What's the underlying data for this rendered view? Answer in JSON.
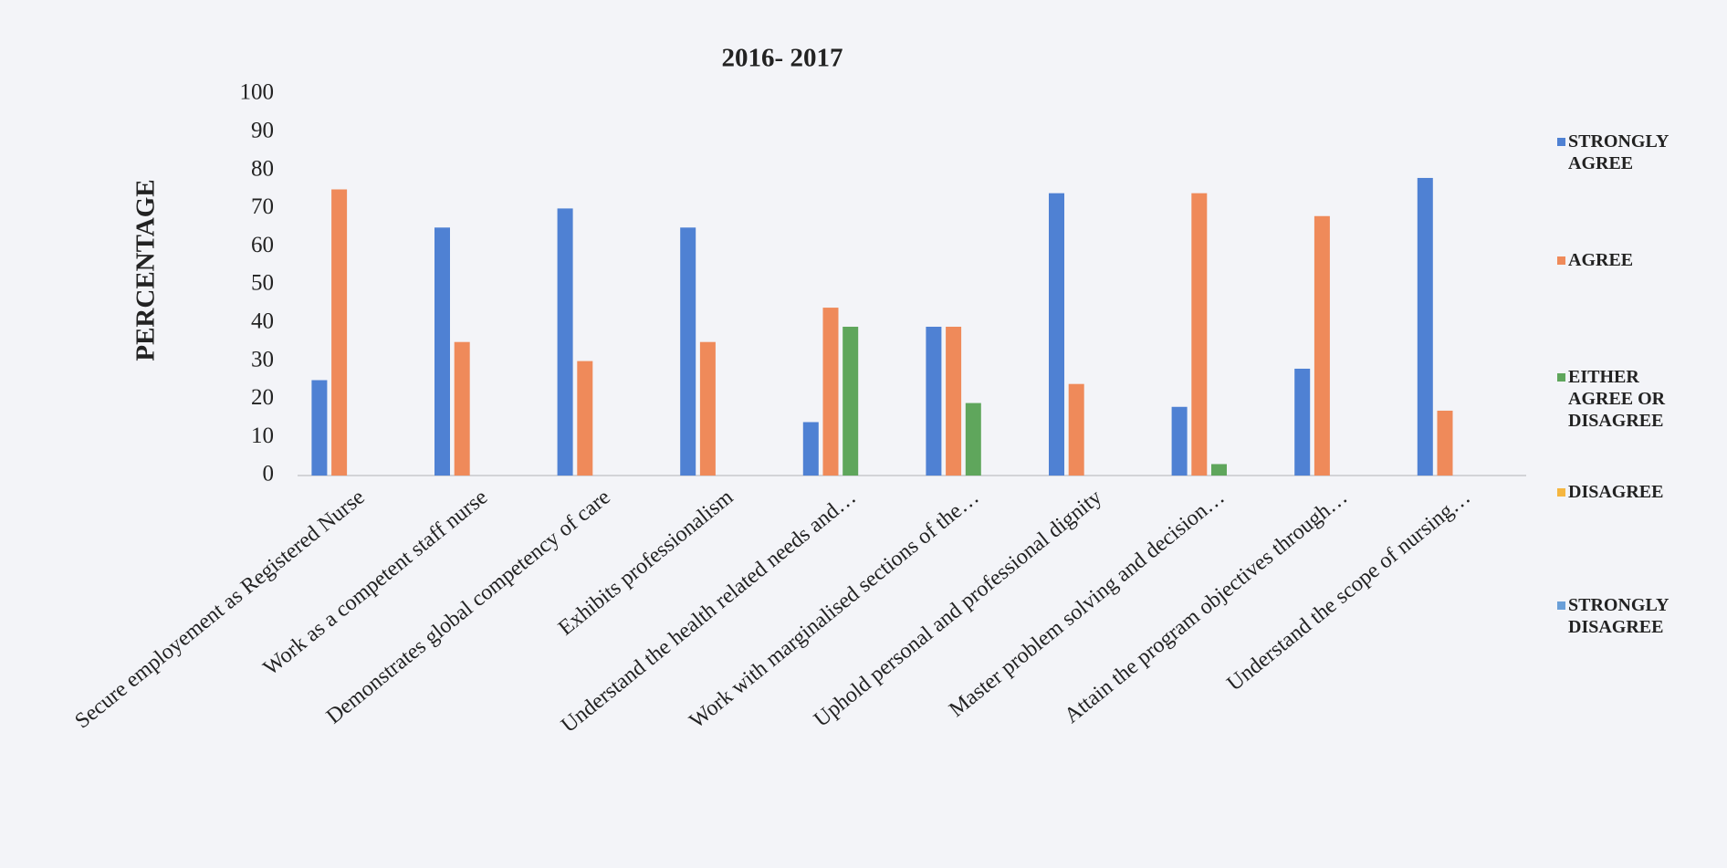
{
  "chart_data": {
    "type": "bar",
    "title": "2016- 2017",
    "y_label": "PERCENTAGE",
    "categories": [
      "Secure employement as Registered Nurse",
      "Work as a competent staff nurse",
      "Demonstrates global competency of care",
      "Exhibits professionalism",
      "Understand the health related needs and…",
      "Work with marginalised sections of the…",
      "Uphold personal and professional dignity",
      "Master problem solving and decision…",
      "Attain the program objectives through…",
      "Understand the scope of nursing…"
    ],
    "series": [
      {
        "name": "STRONGLY AGREE",
        "color": "#4f81d3",
        "values": [
          25,
          65,
          70,
          65,
          14,
          39,
          74,
          18,
          28,
          78
        ]
      },
      {
        "name": "AGREE",
        "color": "#ef8a5a",
        "values": [
          75,
          35,
          30,
          35,
          44,
          39,
          24,
          74,
          68,
          17
        ]
      },
      {
        "name": "EITHER AGREE OR DISAGREE",
        "color": "#5fa65c",
        "values": [
          0,
          0,
          0,
          0,
          39,
          19,
          0,
          3,
          0,
          0
        ]
      },
      {
        "name": "DISAGREE",
        "color": "#f5b640",
        "values": [
          0,
          0,
          0,
          0,
          0,
          0,
          0,
          0,
          0,
          0
        ]
      },
      {
        "name": "STRONGLY DISAGREE",
        "color": "#6a9fd8",
        "values": [
          0,
          0,
          0,
          0,
          0,
          0,
          0,
          0,
          0,
          0
        ]
      }
    ],
    "ylim": [
      0,
      100
    ],
    "yticks": [
      0,
      10,
      20,
      30,
      40,
      50,
      60,
      70,
      80,
      90,
      100
    ],
    "grid": false,
    "legend": "right"
  }
}
